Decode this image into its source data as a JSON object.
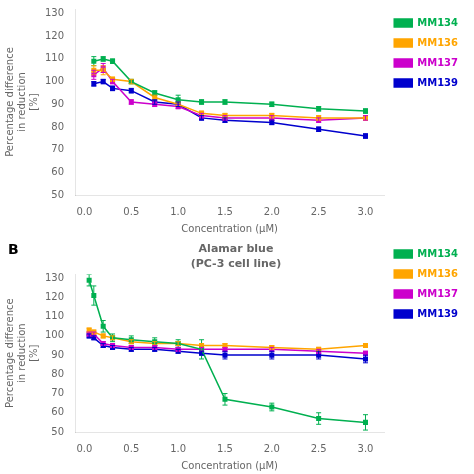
{
  "chart_data": [
    {
      "type": "line",
      "xlabel": "Concentration (μM)",
      "ylabel": "Percentage difference\nin reduction\n[%]",
      "x": [
        0.1,
        0.2,
        0.3,
        0.5,
        0.75,
        1.0,
        1.25,
        1.5,
        2.0,
        2.5,
        3.0
      ],
      "series": [
        {
          "name": "MM134",
          "color": "#00b050",
          "values": [
            109,
            110,
            109,
            100,
            95,
            92,
            91,
            91,
            90,
            88,
            87
          ],
          "errors": [
            2,
            1,
            1,
            1,
            1,
            2,
            1,
            1,
            1,
            1,
            1
          ]
        },
        {
          "name": "MM136",
          "color": "#ffa500",
          "values": [
            105,
            105,
            101,
            100,
            93,
            90,
            86,
            85,
            85,
            84,
            84
          ],
          "errors": [
            2,
            2,
            1,
            1,
            1,
            1,
            1,
            1,
            1,
            1,
            1
          ]
        },
        {
          "name": "MM137",
          "color": "#cc00cc",
          "values": [
            103,
            106,
            100,
            91,
            90,
            89,
            85,
            84,
            84,
            83,
            84
          ],
          "errors": [
            2,
            2,
            1,
            1,
            1,
            1,
            1,
            1,
            1,
            1,
            1
          ]
        },
        {
          "name": "MM139",
          "color": "#0000cd",
          "values": [
            99,
            100,
            97,
            96,
            91,
            90,
            84,
            83,
            82,
            79,
            76
          ],
          "errors": [
            1,
            1,
            1,
            1,
            1,
            1,
            1,
            1,
            1,
            1,
            1
          ]
        }
      ],
      "xlim": [
        -0.1,
        3.2
      ],
      "xticks": [
        {
          "value": 0.0,
          "label": "0.0"
        },
        0.5,
        {
          "value": 1.0,
          "label": "1.0"
        },
        1.5,
        {
          "value": 2.0,
          "label": "2.0"
        },
        2.5,
        {
          "value": 3.0,
          "label": "3.0"
        }
      ],
      "ylim": [
        50,
        132
      ],
      "yticks": [
        50,
        60,
        70,
        80,
        90,
        100,
        110,
        120,
        130
      ],
      "grid": false,
      "legend": "right",
      "marker": "square",
      "line_style": "solid"
    },
    {
      "type": "line",
      "title": "Alamar blue",
      "subtitle": "(PC-3 cell line)",
      "annotations": [
        "B"
      ],
      "xlabel": "Concentration (μM)",
      "ylabel": "Percentage difference\nin reduction\n[%]",
      "x": [
        0.05,
        0.1,
        0.2,
        0.3,
        0.5,
        0.75,
        1.0,
        1.25,
        1.5,
        2.0,
        2.5,
        3.0
      ],
      "series": [
        {
          "name": "MM134",
          "color": "#00b050",
          "values": [
            129,
            121,
            105,
            99,
            98,
            97,
            96,
            93,
            67,
            63,
            57,
            55
          ],
          "errors": [
            3,
            5,
            3,
            2,
            2,
            2,
            2,
            5,
            3,
            2,
            3,
            4
          ]
        },
        {
          "name": "MM136",
          "color": "#ffa500",
          "values": [
            103,
            102,
            100,
            99,
            97,
            96,
            96,
            95,
            95,
            94,
            93,
            95
          ],
          "errors": [
            1,
            1,
            1,
            1,
            1,
            1,
            1,
            1,
            1,
            1,
            1,
            1
          ]
        },
        {
          "name": "MM137",
          "color": "#cc00cc",
          "values": [
            101,
            101,
            96,
            95,
            94,
            94,
            93,
            93,
            93,
            93,
            92,
            91
          ],
          "errors": [
            1,
            1,
            1,
            1,
            1,
            1,
            1,
            1,
            1,
            1,
            1,
            1
          ]
        },
        {
          "name": "MM139",
          "color": "#0000cd",
          "values": [
            100,
            99,
            95,
            94,
            93,
            93,
            92,
            91,
            90,
            90,
            90,
            88
          ],
          "errors": [
            1,
            1,
            1,
            1,
            1,
            1,
            1,
            1,
            2,
            2,
            2,
            2
          ]
        }
      ],
      "xlim": [
        -0.1,
        3.2
      ],
      "xticks": [
        {
          "value": 0.0,
          "label": "0.0"
        },
        0.5,
        {
          "value": 1.0,
          "label": "1.0"
        },
        1.5,
        {
          "value": 2.0,
          "label": "2.0"
        },
        2.5,
        {
          "value": 3.0,
          "label": "3.0"
        }
      ],
      "ylim": [
        50,
        132
      ],
      "yticks": [
        50,
        60,
        70,
        80,
        90,
        100,
        110,
        120,
        130
      ],
      "grid": false,
      "legend": "right",
      "marker": "square",
      "line_style": "solid"
    }
  ]
}
